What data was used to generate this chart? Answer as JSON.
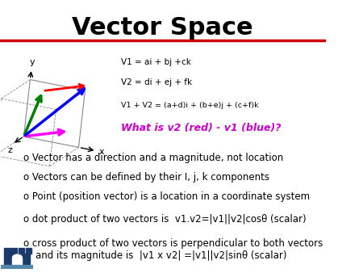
{
  "title": "Vector Space",
  "title_fontsize": 22,
  "title_fontweight": "bold",
  "bg_color": "#ffffff",
  "red_line_y": 0.855,
  "bullet_points": [
    "o Vector has a direction and a magnitude, not location",
    "o Vectors can be defined by their I, j, k components",
    "o Point (position vector) is a location in a coordinate system",
    "o dot product of two vectors is  v1.v2=|v1||v2|cosθ (scalar)",
    "o cross product of two vectors is perpendicular to both vectors\n    and its magnitude is  |v1 x v2| =|v1||v2|sinθ (scalar)"
  ],
  "bullet_fontsize": 8.5,
  "bullet_color": "#000000",
  "label_v1": "V1 = ai + bj +ck",
  "label_v2": "V2 = di + ej + fk",
  "label_v1v2": "V1 + V2 = (a+d)i + (b+e)j + (c+f)k",
  "label_question": "What is v2 (red) - v1 (blue)?",
  "question_color": "#cc00cc",
  "axes_label_color": "#000000",
  "box_color": "#888888",
  "vector_blue_color": "#0000ff",
  "vector_green_color": "#008000",
  "vector_red_color": "#ff0000",
  "vector_magenta_color": "#ff00ff"
}
